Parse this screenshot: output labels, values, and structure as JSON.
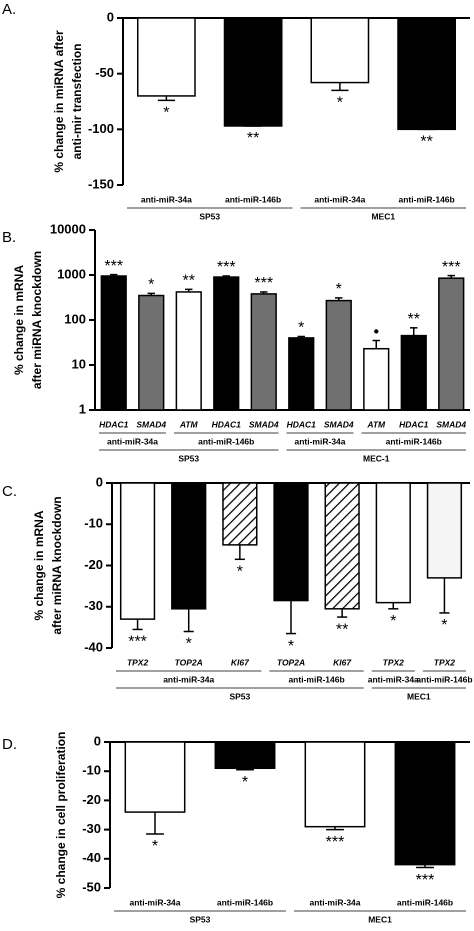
{
  "chart_data": [
    {
      "type": "bar",
      "panel": "A.",
      "ylabel": [
        "% change in miRNA after",
        "anti-mir transfection"
      ],
      "ylim": [
        -150,
        0
      ],
      "yticks": [
        0,
        -50,
        -100,
        -150
      ],
      "log": false,
      "groups": [
        {
          "label": "SP53",
          "categories": [
            "anti-miR-34a",
            "anti-miR-146b"
          ],
          "values": [
            -70,
            -97
          ],
          "errors": [
            4,
            0
          ],
          "colors": [
            "#ffffff",
            "#000000"
          ],
          "significance": [
            "*",
            "**"
          ]
        },
        {
          "label": "MEC1",
          "categories": [
            "anti-miR-34a",
            "anti-miR-146b"
          ],
          "values": [
            -58,
            -100
          ],
          "errors": [
            7,
            0
          ],
          "colors": [
            "#ffffff",
            "#000000"
          ],
          "significance": [
            "*",
            "**"
          ]
        }
      ]
    },
    {
      "type": "bar",
      "panel": "B.",
      "ylabel": [
        "% change in mRNA",
        "after miRNA knockdown"
      ],
      "ylim": [
        1,
        10000
      ],
      "yticks": [
        1,
        10,
        100,
        1000,
        10000
      ],
      "log": true,
      "groups": [
        {
          "label": "SP53",
          "subgroups": [
            {
              "label": "anti-miR-34a",
              "categories": [
                "HDAC1",
                "SMAD4"
              ],
              "values": [
                950,
                350
              ],
              "errors": [
                70,
                40
              ],
              "colors": [
                "#000000",
                "#707070"
              ],
              "significance": [
                "***",
                "*"
              ]
            },
            {
              "label": "anti-miR-146b",
              "categories": [
                "ATM",
                "HDAC1",
                "SMAD4"
              ],
              "values": [
                420,
                900,
                380
              ],
              "errors": [
                60,
                50,
                40
              ],
              "colors": [
                "#ffffff",
                "#000000",
                "#707070"
              ],
              "significance": [
                "**",
                "***",
                "***"
              ]
            }
          ]
        },
        {
          "label": "MEC-1",
          "subgroups": [
            {
              "label": "anti-miR-34a",
              "categories": [
                "HDAC1",
                "SMAD4"
              ],
              "values": [
                40,
                270
              ],
              "errors": [
                3,
                40
              ],
              "colors": [
                "#000000",
                "#707070"
              ],
              "significance": [
                "*",
                "*"
              ]
            },
            {
              "label": "anti-miR-146b",
              "categories": [
                "ATM",
                "HDAC1",
                "SMAD4"
              ],
              "values": [
                23,
                45,
                850
              ],
              "errors": [
                12,
                22,
                120
              ],
              "colors": [
                "#ffffff",
                "#000000",
                "#707070"
              ],
              "significance": [
                "•",
                "**",
                "***"
              ]
            }
          ]
        }
      ]
    },
    {
      "type": "bar",
      "panel": "C.",
      "ylabel": [
        "% change in mRNA",
        "after miRNA knockdown"
      ],
      "ylim": [
        -40,
        0
      ],
      "yticks": [
        0,
        -10,
        -20,
        -30,
        -40
      ],
      "log": false,
      "groups": [
        {
          "label": "SP53",
          "subgroups": [
            {
              "label": "anti-miR-34a",
              "categories": [
                "TPX2",
                "TOP2A",
                "KI67"
              ],
              "values": [
                -33,
                -30.5,
                -15
              ],
              "errors": [
                2.5,
                5.5,
                3.5
              ],
              "colors": [
                "#ffffff",
                "#000000",
                "#ffffff"
              ],
              "hatch": [
                false,
                false,
                true
              ],
              "significance": [
                "***",
                "*",
                "*"
              ]
            },
            {
              "label": "anti-miR-146b",
              "categories": [
                "TOP2A",
                "KI67"
              ],
              "values": [
                -28.5,
                -30.5
              ],
              "errors": [
                8,
                2
              ],
              "colors": [
                "#000000",
                "#ffffff"
              ],
              "hatch": [
                false,
                true
              ],
              "significance": [
                "*",
                "**"
              ]
            }
          ]
        },
        {
          "label": "MEC1",
          "subgroups": [
            {
              "label": "anti-miR-34a",
              "categories": [
                "TPX2"
              ],
              "values": [
                -29
              ],
              "errors": [
                1.5
              ],
              "colors": [
                "#ffffff"
              ],
              "hatch": [
                false
              ],
              "significance": [
                "*"
              ]
            },
            {
              "label": "anti-miR-146b",
              "categories": [
                "TPX2"
              ],
              "values": [
                -23
              ],
              "errors": [
                8.5
              ],
              "colors": [
                "#f5f5f5"
              ],
              "hatch": [
                false
              ],
              "significance": [
                "*"
              ]
            }
          ]
        }
      ]
    },
    {
      "type": "bar",
      "panel": "D.",
      "ylabel": [
        "% change in cell proliferation"
      ],
      "ylim": [
        -50,
        0
      ],
      "yticks": [
        0,
        -10,
        -20,
        -30,
        -40,
        -50
      ],
      "log": false,
      "groups": [
        {
          "label": "SP53",
          "categories": [
            "anti-miR-34a",
            "anti-miR-146b"
          ],
          "values": [
            -24,
            -9
          ],
          "errors": [
            7.5,
            0.5
          ],
          "colors": [
            "#ffffff",
            "#000000"
          ],
          "significance": [
            "*",
            "*"
          ]
        },
        {
          "label": "MEC1",
          "categories": [
            "anti-miR-34a",
            "anti-miR-146b"
          ],
          "values": [
            -29,
            -42
          ],
          "errors": [
            1,
            1
          ],
          "colors": [
            "#ffffff",
            "#000000"
          ],
          "significance": [
            "***",
            "***"
          ]
        }
      ]
    }
  ]
}
